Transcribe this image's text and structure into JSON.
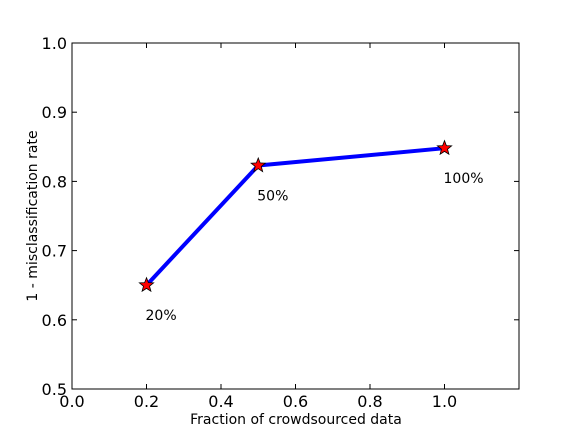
{
  "chart_data": {
    "type": "line",
    "title": "",
    "xlabel": "Fraction of crowdsourced data",
    "ylabel": "1 - misclassification rate",
    "xlim": [
      0.0,
      1.2
    ],
    "ylim": [
      0.5,
      1.0
    ],
    "x_ticks": [
      "0.0",
      "0.2",
      "0.4",
      "0.6",
      "0.8",
      "1.0"
    ],
    "y_ticks": [
      "0.5",
      "0.6",
      "0.7",
      "0.8",
      "0.9",
      "1.0"
    ],
    "grid": false,
    "legend": "none",
    "series": [
      {
        "x": [
          0.2,
          0.5,
          1.0
        ],
        "y": [
          0.65,
          0.823,
          0.848
        ],
        "line_color": "#0000ff",
        "marker": "star",
        "marker_color": "#ff0000"
      }
    ],
    "annotations": [
      {
        "text": "20%",
        "x": 0.2,
        "y": 0.65
      },
      {
        "text": "50%",
        "x": 0.5,
        "y": 0.823
      },
      {
        "text": "100%",
        "x": 1.0,
        "y": 0.848
      }
    ]
  }
}
